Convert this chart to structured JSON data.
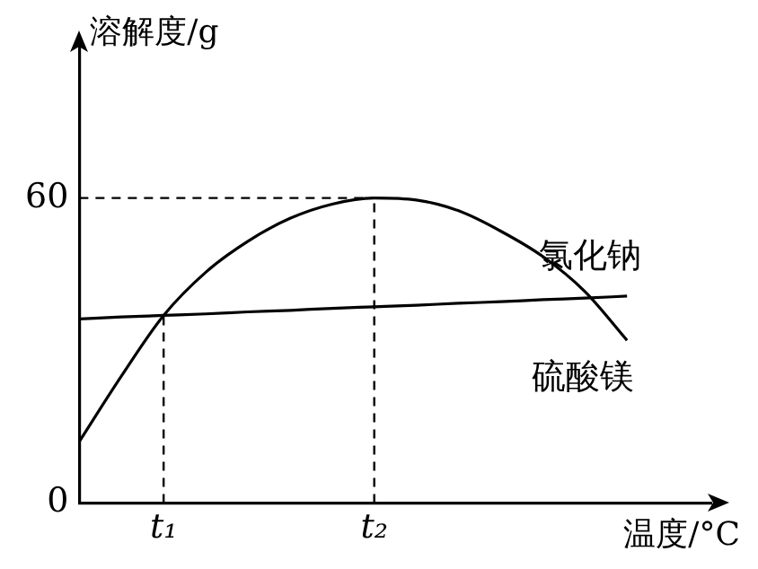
{
  "chart_data": {
    "type": "line",
    "xlabel": "温度/°C",
    "ylabel": "溶解度/g",
    "categories": [
      null,
      null,
      "t₁",
      null,
      null,
      null,
      null,
      "t₂",
      null,
      null,
      null,
      null,
      null,
      null,
      null,
      null
    ],
    "ylim": [
      0,
      90
    ],
    "yticks": [
      0,
      60
    ],
    "series": [
      {
        "name": "氯化钠",
        "color": "#000000",
        "values": [
          36.2,
          36.6,
          36.9,
          37.2,
          37.6,
          37.9,
          38.3,
          38.6,
          38.9,
          39.3,
          39.6,
          40,
          40.3,
          40.7,
          null,
          null
        ]
      },
      {
        "name": "硫酸镁",
        "color": "#000000",
        "values": [
          12.1,
          25,
          36.9,
          45.4,
          51.5,
          56,
          58.8,
          60,
          59.6,
          57.5,
          53.5,
          48.5,
          41.6,
          32,
          null,
          null
        ]
      }
    ],
    "ref_lines": [
      {
        "axis": "x",
        "value": "t₁"
      },
      {
        "axis": "x",
        "value": "t₂"
      },
      {
        "axis": "y",
        "value": 60
      }
    ],
    "grid": false,
    "legend": false,
    "marker": "none",
    "line_style": "solid"
  }
}
